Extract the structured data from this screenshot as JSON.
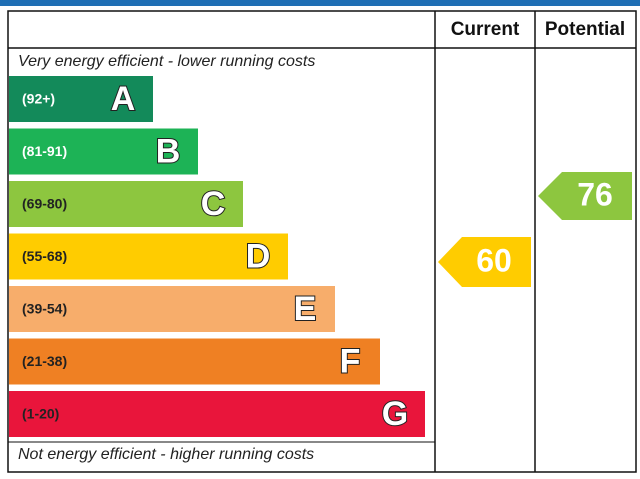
{
  "header": {
    "current": "Current",
    "potential": "Potential"
  },
  "top_note": "Very energy efficient - lower running costs",
  "bottom_note": "Not energy efficient - higher running costs",
  "bands": [
    {
      "range": "(92+)",
      "letter": "A",
      "color": "#138a5a"
    },
    {
      "range": "(81-91)",
      "letter": "B",
      "color": "#1db356"
    },
    {
      "range": "(69-80)",
      "letter": "C",
      "color": "#8dc63f"
    },
    {
      "range": "(55-68)",
      "letter": "D",
      "color": "#ffcc00"
    },
    {
      "range": "(39-54)",
      "letter": "E",
      "color": "#f7ad6b"
    },
    {
      "range": "(21-38)",
      "letter": "F",
      "color": "#ef8023"
    },
    {
      "range": "(1-20)",
      "letter": "G",
      "color": "#e9153b"
    }
  ],
  "current": {
    "value": 60,
    "color": "#ffcc00"
  },
  "potential": {
    "value": 76,
    "color": "#8dc63f"
  }
}
